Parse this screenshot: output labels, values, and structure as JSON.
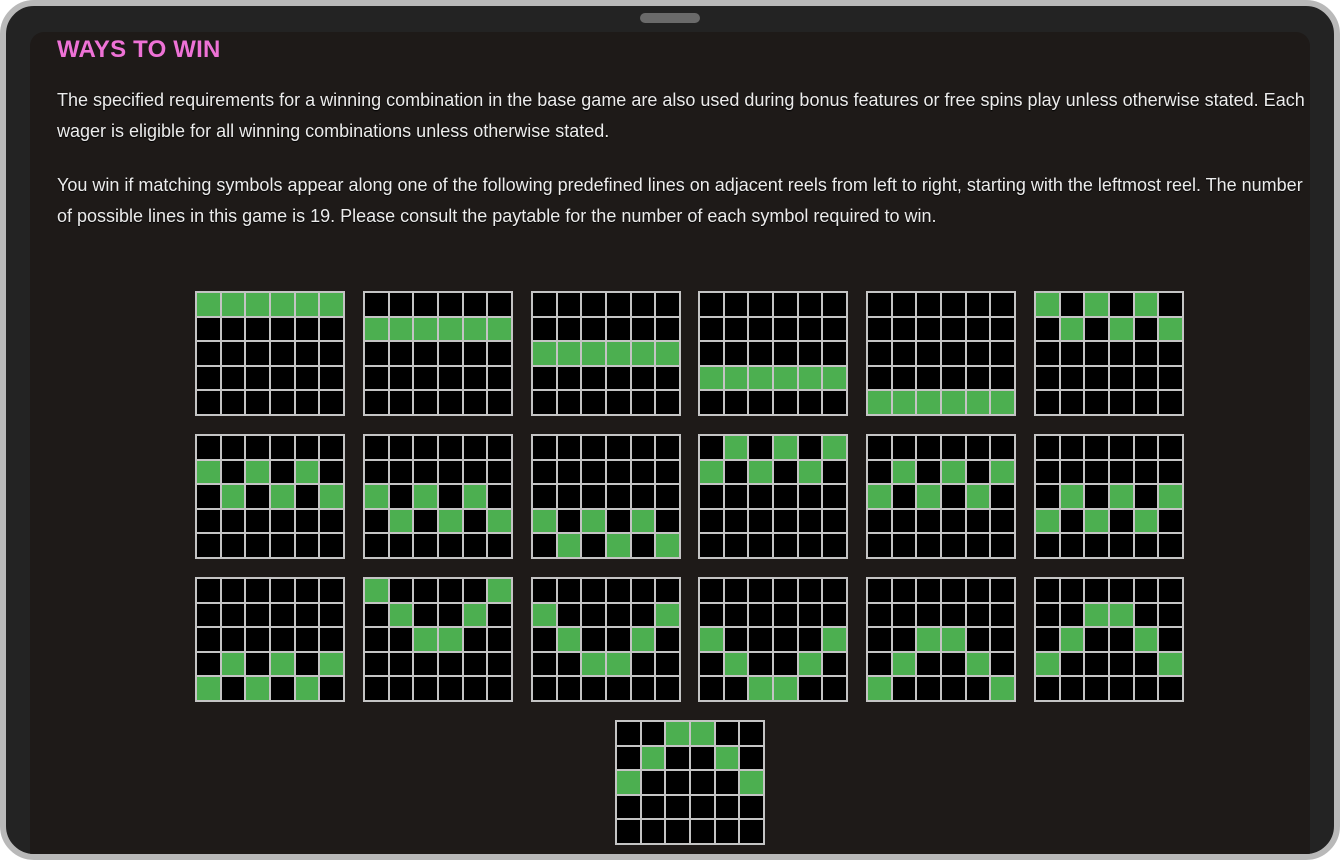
{
  "title": "WAYS TO WIN",
  "paragraphs": [
    "The specified requirements for a winning combination in the base game are also used during bonus features or free spins play unless otherwise stated. Each wager is eligible for all winning combinations unless otherwise stated.",
    "You win if matching symbols appear along one of the following predefined lines on adjacent reels from left to right, starting with the leftmost reel. The number of possible lines in this game is 19. Please consult the paytable for the number of each symbol required to win."
  ],
  "grid": {
    "reels": 6,
    "rows": 5
  },
  "colors": {
    "title": "#ee72d6",
    "win_cell": "#4caf50",
    "empty_cell": "#000000",
    "grid_line": "#c4c4c4"
  },
  "paylines": [
    [
      0,
      0,
      0,
      0,
      0,
      0
    ],
    [
      1,
      1,
      1,
      1,
      1,
      1
    ],
    [
      2,
      2,
      2,
      2,
      2,
      2
    ],
    [
      3,
      3,
      3,
      3,
      3,
      3
    ],
    [
      4,
      4,
      4,
      4,
      4,
      4
    ],
    [
      0,
      1,
      0,
      1,
      0,
      1
    ],
    [
      1,
      2,
      1,
      2,
      1,
      2
    ],
    [
      2,
      3,
      2,
      3,
      2,
      3
    ],
    [
      3,
      4,
      3,
      4,
      3,
      4
    ],
    [
      1,
      0,
      1,
      0,
      1,
      0
    ],
    [
      2,
      1,
      2,
      1,
      2,
      1
    ],
    [
      3,
      2,
      3,
      2,
      3,
      2
    ],
    [
      4,
      3,
      4,
      3,
      4,
      3
    ],
    [
      0,
      1,
      2,
      2,
      1,
      0
    ],
    [
      1,
      2,
      3,
      3,
      2,
      1
    ],
    [
      2,
      3,
      4,
      4,
      3,
      2
    ],
    [
      4,
      3,
      2,
      2,
      3,
      4
    ],
    [
      3,
      2,
      1,
      1,
      2,
      3
    ],
    [
      2,
      1,
      0,
      0,
      1,
      2
    ]
  ]
}
